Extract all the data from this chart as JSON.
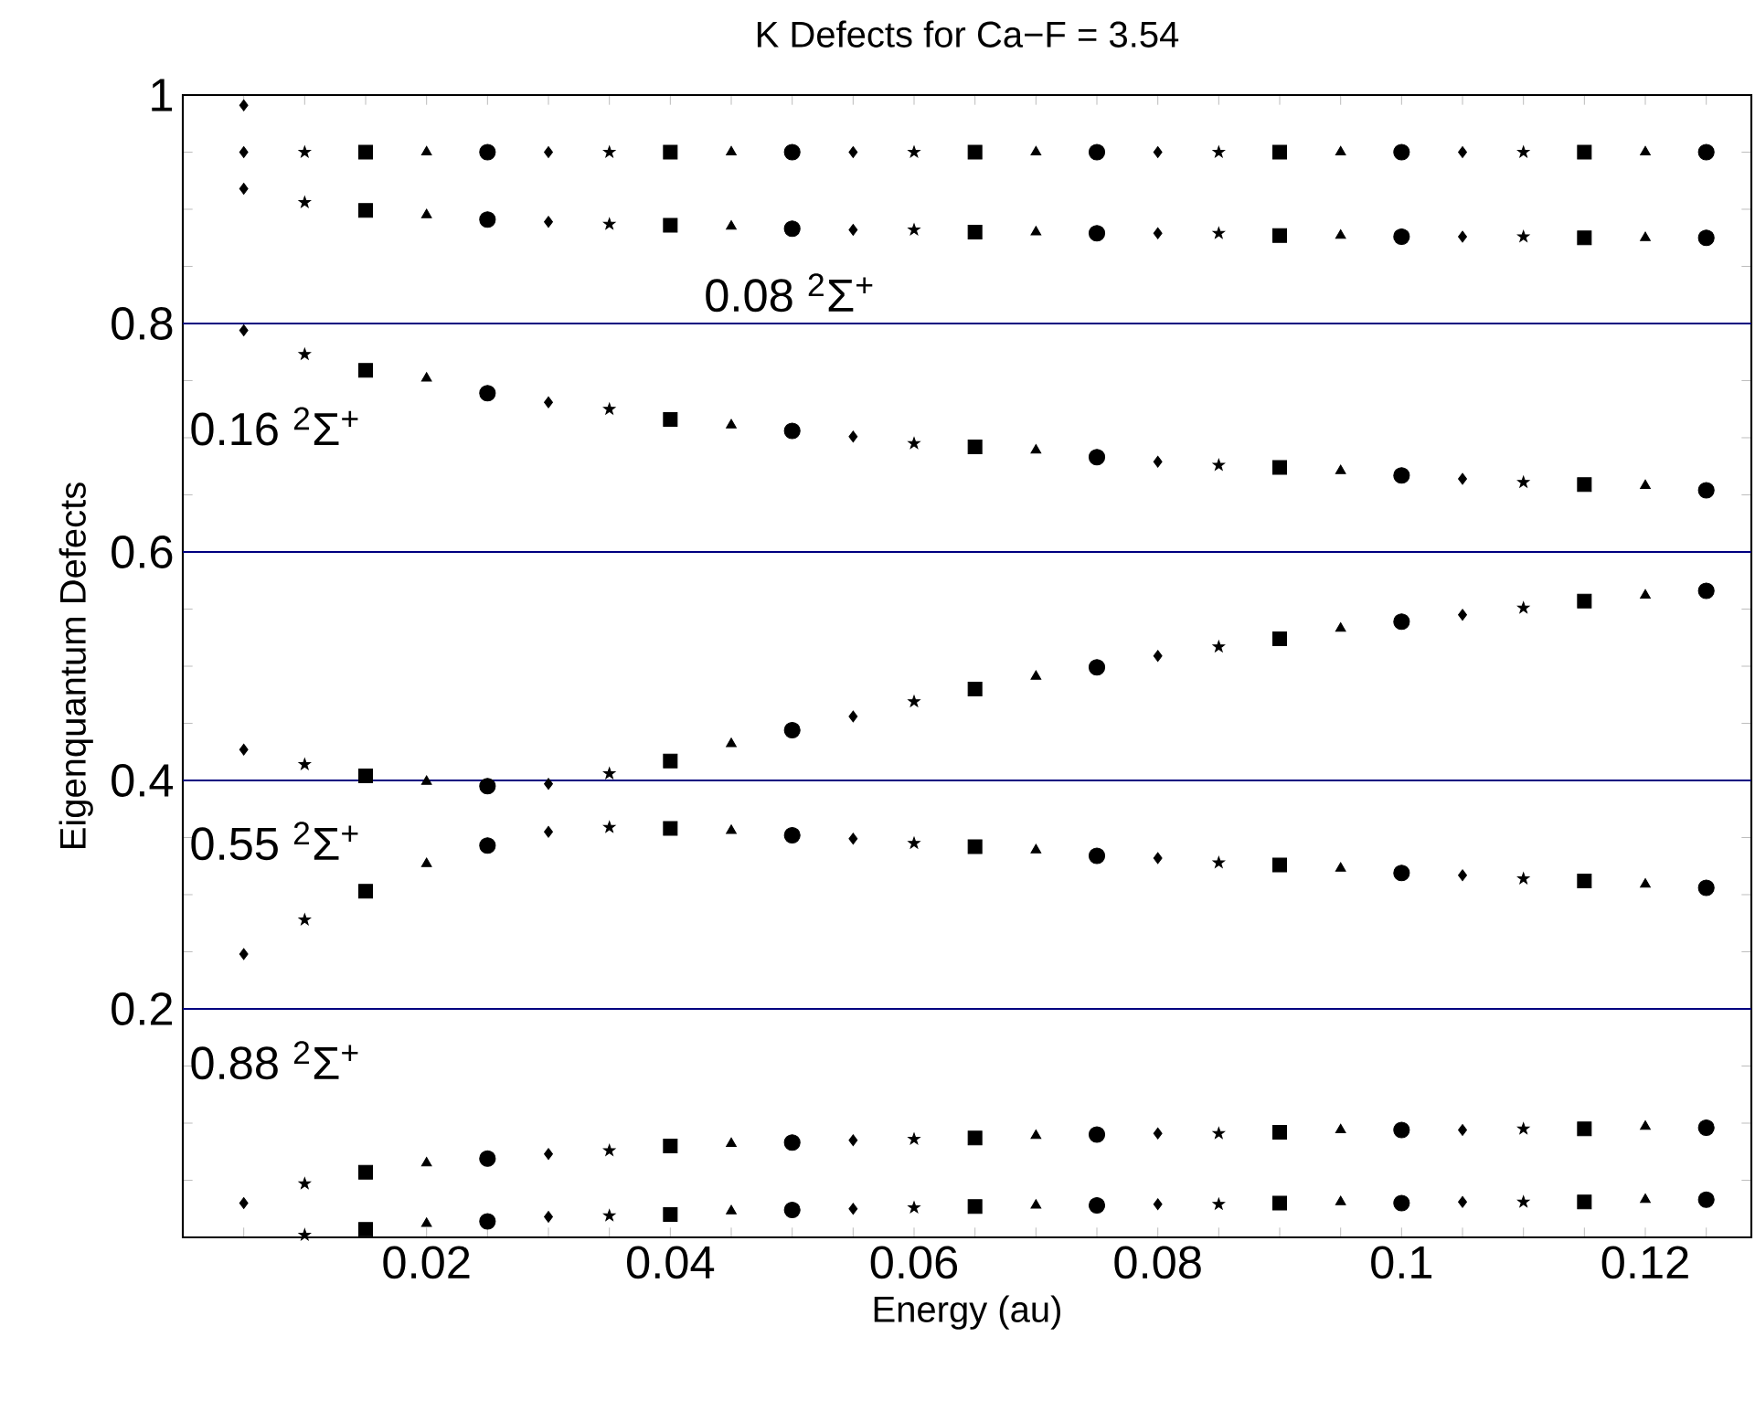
{
  "chart_data": {
    "type": "scatter",
    "title": "K Defects for Ca−F = 3.54",
    "xlabel": "Energy (au)",
    "ylabel": "Eigenquantum Defects",
    "xlim": [
      0,
      0.1287
    ],
    "ylim": [
      0,
      1
    ],
    "xticks": [
      {
        "value": 0.005,
        "label": null
      },
      {
        "value": 0.01,
        "label": null
      },
      {
        "value": 0.015,
        "label": null
      },
      0.02,
      {
        "value": 0.025,
        "label": null
      },
      {
        "value": 0.03,
        "label": null
      },
      {
        "value": 0.035,
        "label": null
      },
      0.04,
      {
        "value": 0.045,
        "label": null
      },
      {
        "value": 0.05,
        "label": null
      },
      {
        "value": 0.055,
        "label": null
      },
      0.06,
      {
        "value": 0.065,
        "label": null
      },
      {
        "value": 0.07,
        "label": null
      },
      {
        "value": 0.075,
        "label": null
      },
      0.08,
      {
        "value": 0.085,
        "label": null
      },
      {
        "value": 0.09,
        "label": null
      },
      {
        "value": 0.095,
        "label": null
      },
      0.1,
      {
        "value": 0.105,
        "label": null
      },
      {
        "value": 0.11,
        "label": null
      },
      {
        "value": 0.115,
        "label": null
      },
      0.12,
      {
        "value": 0.125,
        "label": null
      }
    ],
    "yticks": [
      {
        "value": 0.05,
        "label": null
      },
      {
        "value": 0.1,
        "label": null
      },
      {
        "value": 0.15,
        "label": null
      },
      0.2,
      {
        "value": 0.25,
        "label": null
      },
      {
        "value": 0.3,
        "label": null
      },
      {
        "value": 0.35,
        "label": null
      },
      0.4,
      {
        "value": 0.45,
        "label": null
      },
      {
        "value": 0.5,
        "label": null
      },
      {
        "value": 0.55,
        "label": null
      },
      0.6,
      {
        "value": 0.65,
        "label": null
      },
      {
        "value": 0.7,
        "label": null
      },
      {
        "value": 0.75,
        "label": null
      },
      0.8,
      {
        "value": 0.85,
        "label": null
      },
      {
        "value": 0.9,
        "label": null
      },
      {
        "value": 0.95,
        "label": null
      },
      1
    ],
    "ref_lines": [
      {
        "axis": "y",
        "value": 0.2,
        "color": "#000080"
      },
      {
        "axis": "y",
        "value": 0.4,
        "color": "#000080"
      },
      {
        "axis": "y",
        "value": 0.6,
        "color": "#000080"
      },
      {
        "axis": "y",
        "value": 0.8,
        "color": "#000080"
      }
    ],
    "annotations": [
      "0.08 $^{2}$Σ$^{+}$",
      "0.16 $^{2}$Σ$^{+}$",
      "0.55 $^{2}$Σ$^{+}$",
      "0.88 $^{2}$Σ$^{+}$"
    ],
    "series": [
      {
        "marker": "diamond",
        "color": "#000000",
        "x": [
          0.005,
          0.005,
          0.005,
          0.005,
          0.005,
          0.005,
          0.005,
          0.03,
          0.03,
          0.03,
          0.03,
          0.03,
          0.03,
          0.03,
          0.055,
          0.055,
          0.055,
          0.055,
          0.055,
          0.055,
          0.055,
          0.08,
          0.08,
          0.08,
          0.08,
          0.08,
          0.08,
          0.08,
          0.105,
          0.105,
          0.105,
          0.105,
          0.105,
          0.105,
          0.105
        ],
        "values": [
          0.95,
          0.918,
          0.794,
          0.427,
          0.248,
          0.03,
          0.991,
          0.95,
          0.889,
          0.731,
          0.397,
          0.355,
          0.073,
          0.018,
          0.95,
          0.882,
          0.701,
          0.456,
          0.349,
          0.085,
          0.025,
          0.95,
          0.879,
          0.679,
          0.509,
          0.332,
          0.091,
          0.029,
          0.95,
          0.876,
          0.664,
          0.545,
          0.317,
          0.094,
          0.031
        ]
      },
      {
        "marker": "star",
        "color": "#000000",
        "x": [
          0.01,
          0.01,
          0.01,
          0.01,
          0.01,
          0.01,
          0.01,
          0.035,
          0.035,
          0.035,
          0.035,
          0.035,
          0.035,
          0.035,
          0.06,
          0.06,
          0.06,
          0.06,
          0.06,
          0.06,
          0.06,
          0.085,
          0.085,
          0.085,
          0.085,
          0.085,
          0.085,
          0.085,
          0.11,
          0.11,
          0.11,
          0.11,
          0.11,
          0.11,
          0.11
        ],
        "values": [
          0.95,
          0.906,
          0.773,
          0.414,
          0.278,
          0.047,
          0.002,
          0.95,
          0.887,
          0.725,
          0.406,
          0.359,
          0.076,
          0.019,
          0.95,
          0.882,
          0.695,
          0.469,
          0.345,
          0.086,
          0.026,
          0.95,
          0.879,
          0.676,
          0.517,
          0.328,
          0.091,
          0.029,
          0.95,
          0.876,
          0.661,
          0.551,
          0.314,
          0.095,
          0.031
        ]
      },
      {
        "marker": "square",
        "color": "#000000",
        "x": [
          0.015,
          0.015,
          0.015,
          0.015,
          0.015,
          0.015,
          0.015,
          0.04,
          0.04,
          0.04,
          0.04,
          0.04,
          0.04,
          0.04,
          0.065,
          0.065,
          0.065,
          0.065,
          0.065,
          0.065,
          0.065,
          0.09,
          0.09,
          0.09,
          0.09,
          0.09,
          0.09,
          0.09,
          0.115,
          0.115,
          0.115,
          0.115,
          0.115,
          0.115,
          0.115
        ],
        "values": [
          0.95,
          0.899,
          0.759,
          0.404,
          0.303,
          0.057,
          0.007,
          0.95,
          0.886,
          0.716,
          0.417,
          0.358,
          0.08,
          0.02,
          0.95,
          0.88,
          0.692,
          0.48,
          0.342,
          0.087,
          0.027,
          0.95,
          0.877,
          0.674,
          0.524,
          0.326,
          0.092,
          0.03,
          0.95,
          0.875,
          0.659,
          0.557,
          0.312,
          0.095,
          0.031
        ]
      },
      {
        "marker": "triangle",
        "color": "#000000",
        "x": [
          0.02,
          0.02,
          0.02,
          0.02,
          0.02,
          0.02,
          0.02,
          0.045,
          0.045,
          0.045,
          0.045,
          0.045,
          0.045,
          0.045,
          0.07,
          0.07,
          0.07,
          0.07,
          0.07,
          0.07,
          0.07,
          0.095,
          0.095,
          0.095,
          0.095,
          0.095,
          0.095,
          0.095,
          0.12,
          0.12,
          0.12,
          0.12,
          0.12,
          0.12,
          0.12
        ],
        "values": [
          0.95,
          0.895,
          0.752,
          0.399,
          0.327,
          0.065,
          0.012,
          0.95,
          0.885,
          0.711,
          0.432,
          0.356,
          0.082,
          0.023,
          0.95,
          0.88,
          0.689,
          0.491,
          0.339,
          0.089,
          0.028,
          0.95,
          0.877,
          0.671,
          0.533,
          0.323,
          0.094,
          0.031,
          0.95,
          0.875,
          0.658,
          0.562,
          0.309,
          0.097,
          0.033
        ]
      },
      {
        "marker": "circle",
        "color": "#000000",
        "x": [
          0.025,
          0.025,
          0.025,
          0.025,
          0.025,
          0.025,
          0.025,
          0.05,
          0.05,
          0.05,
          0.05,
          0.05,
          0.05,
          0.05,
          0.075,
          0.075,
          0.075,
          0.075,
          0.075,
          0.075,
          0.075,
          0.1,
          0.1,
          0.1,
          0.1,
          0.1,
          0.1,
          0.1,
          0.125,
          0.125,
          0.125,
          0.125,
          0.125,
          0.125,
          0.125
        ],
        "values": [
          0.95,
          0.891,
          0.739,
          0.395,
          0.343,
          0.069,
          0.014,
          0.95,
          0.883,
          0.706,
          0.444,
          0.352,
          0.083,
          0.024,
          0.95,
          0.879,
          0.683,
          0.499,
          0.334,
          0.09,
          0.028,
          0.95,
          0.876,
          0.667,
          0.539,
          0.319,
          0.094,
          0.03,
          0.95,
          0.875,
          0.654,
          0.566,
          0.306,
          0.096,
          0.033
        ]
      }
    ]
  }
}
